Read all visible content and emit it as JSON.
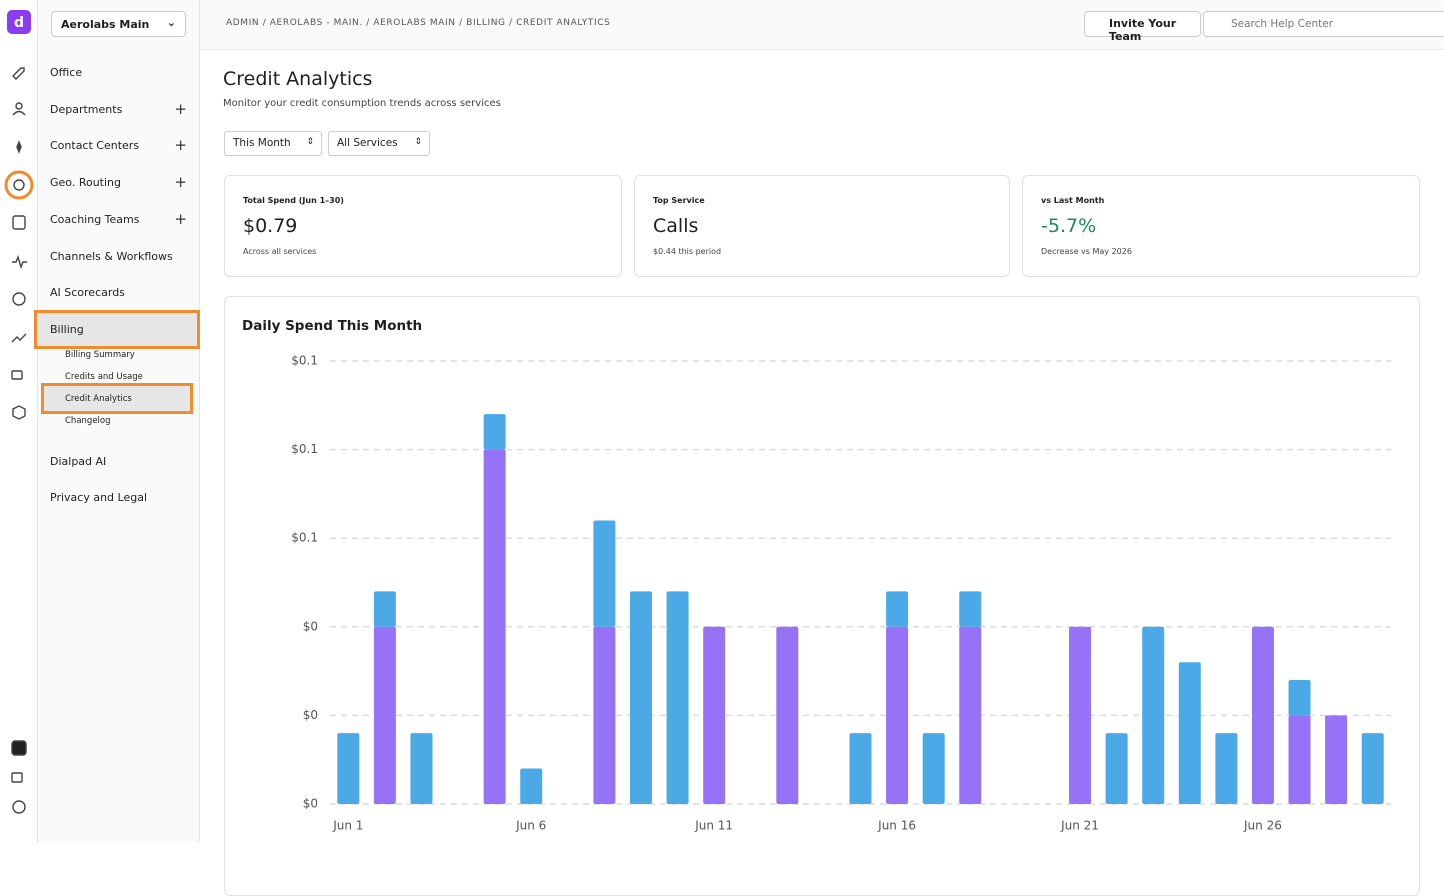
{
  "workspace": "Aerolabs Main",
  "breadcrumb": "ADMIN / AEROLABS - MAIN. / AEROLABS MAIN / BILLING / CREDIT ANALYTICS",
  "invite_button": "Invite Your Team",
  "search_placeholder": "Search Help Center",
  "nav": [
    "Office",
    "Departments",
    "Contact Centers",
    "Geo. Routing",
    "Coaching Teams",
    "Channels & Workflows",
    "AI Scorecards",
    "Billing",
    "Dialpad AI",
    "Privacy and Legal"
  ],
  "billing_subnav": [
    "Billing Summary",
    "Credits and Usage",
    "Credit Analytics",
    "Changelog"
  ],
  "page": {
    "title": "Credit Analytics",
    "subtitle": "Monitor your credit consumption trends across services"
  },
  "filters": [
    "This Month",
    "All Services"
  ],
  "cards": [
    {
      "label": "Total Spend (Jun 1–30)",
      "value": "$0.79",
      "note": "Across all services"
    },
    {
      "label": "Top Service",
      "value": "Calls",
      "note": "$0.44 this period"
    },
    {
      "label": "vs Last Month",
      "value": "-5.7%",
      "note": "Decrease vs May 2026"
    }
  ],
  "chart_data": {
    "type": "stacked_bar",
    "title": "Daily Spend This Month",
    "categories": [
      "Jun 1",
      null,
      null,
      null,
      null,
      "Jun 6",
      null,
      null,
      null,
      null,
      "Jun 11",
      null,
      null,
      null,
      null,
      "Jun 16",
      null,
      null,
      null,
      null,
      "Jun 21",
      null,
      null,
      null,
      null,
      "Jun 26",
      null,
      null,
      null
    ],
    "series": [
      {
        "color": "#9672f7",
        "values": [
          0,
          0.04,
          0,
          0,
          0.08,
          0,
          0,
          0.04,
          0,
          0,
          0.04,
          0,
          0.04,
          0,
          0,
          0.04,
          0,
          0.04,
          0,
          0,
          0.04,
          0,
          0,
          0,
          0,
          0.04,
          0.02,
          0.02,
          0
        ]
      },
      {
        "color": "#4ba9e8",
        "values": [
          0.016,
          0.008,
          0.016,
          0,
          0.008,
          0.008,
          0,
          0.024,
          0.048,
          0.048,
          0,
          0,
          0,
          0,
          0.016,
          0.008,
          0.016,
          0.008,
          0,
          0,
          0,
          0.016,
          0.04,
          0.032,
          0.016,
          0,
          0.008,
          0,
          0.016
        ]
      }
    ],
    "ylim": [
      0,
      0.1
    ],
    "yticks": [
      {
        "value": 0,
        "label": "$0"
      },
      {
        "value": 0.02,
        "label": "$0"
      },
      {
        "value": 0.04,
        "label": "$0"
      },
      {
        "value": 0.06,
        "label": "$0.1"
      },
      {
        "value": 0.08,
        "label": "$0.1"
      },
      {
        "value": 0.1,
        "label": "$0.1"
      }
    ],
    "grid": true
  }
}
